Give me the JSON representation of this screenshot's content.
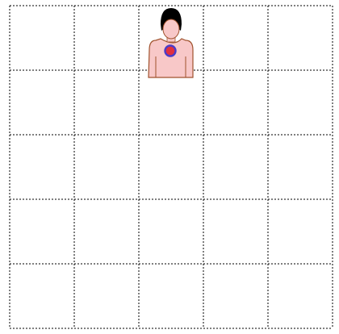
{
  "board": {
    "rows": 5,
    "cols": 5,
    "grid_style": "dashed",
    "grid_color": "#000000",
    "background": "#ffffff"
  },
  "avatar": {
    "icon": "person-icon",
    "row": 0,
    "col": 2,
    "hair_color": "#000000",
    "skin_color": "#f8c8c8",
    "outline_color": "#a0522d",
    "badge": {
      "icon": "red-dot-icon",
      "fill": "#e03040",
      "ring": "#4b3cc8"
    }
  }
}
